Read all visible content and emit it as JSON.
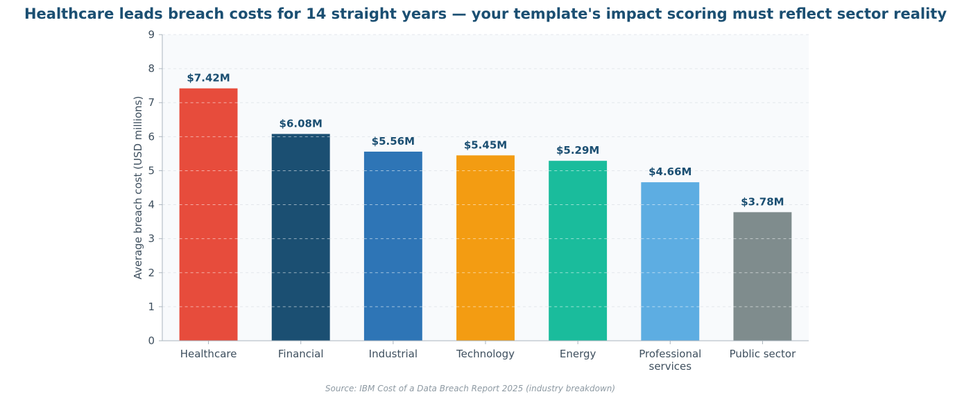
{
  "chart_data": {
    "type": "bar",
    "title": "Healthcare leads breach costs for 14 straight years — your template's impact scoring must reflect sector reality",
    "xlabel": "",
    "ylabel": "Average breach cost (USD millions)",
    "source": "Source: IBM Cost of a Data Breach Report 2025 (industry breakdown)",
    "ylim": [
      0,
      9
    ],
    "yticks": [
      0,
      1,
      2,
      3,
      4,
      5,
      6,
      7,
      8,
      9
    ],
    "grid": true,
    "legend": "none",
    "categories": [
      "Healthcare",
      "Financial",
      "Industrial",
      "Technology",
      "Energy",
      "Professional services",
      "Public sector"
    ],
    "values": [
      7.42,
      6.08,
      5.56,
      5.45,
      5.29,
      4.66,
      3.78
    ],
    "data_labels": [
      "$7.42M",
      "$6.08M",
      "$5.56M",
      "$5.45M",
      "$5.29M",
      "$4.66M",
      "$3.78M"
    ],
    "colors": [
      "#e74c3c",
      "#1b4f72",
      "#2e75b6",
      "#f39c12",
      "#1abc9c",
      "#5dade2",
      "#7f8c8d"
    ]
  }
}
